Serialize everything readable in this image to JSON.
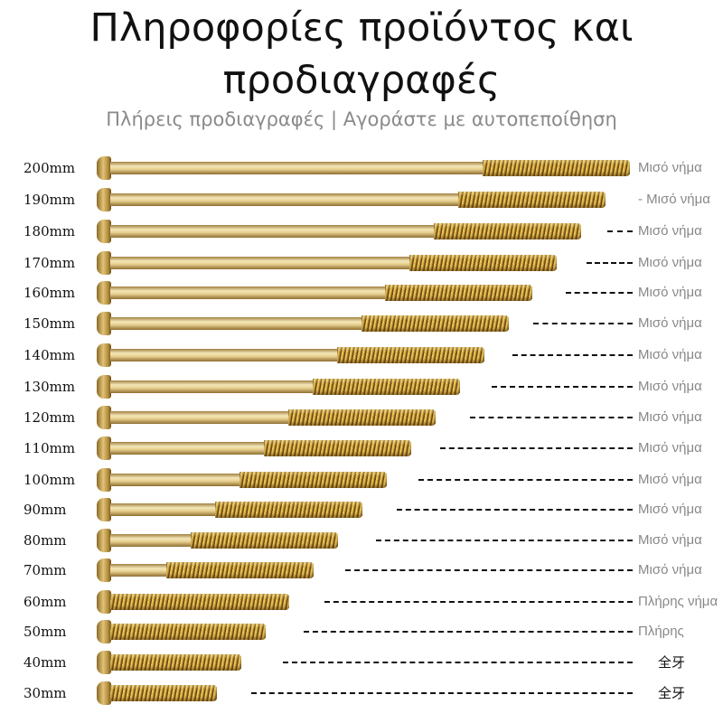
{
  "title_lines": [
    "Πληροφορίες προϊόντος και",
    "προδιαγραφές"
  ],
  "subtitle": "Πλήρεις προδιαγραφές | Αγοράστε με αυτοπεποίθηση",
  "rows": [
    {
      "size": "200mm",
      "mm": 200,
      "thread": "half",
      "label": [
        "Μισό",
        "νήμα"
      ]
    },
    {
      "size": "190mm",
      "mm": 190,
      "thread": "half",
      "label": [
        "- Μισό",
        "νήμα"
      ]
    },
    {
      "size": "180mm",
      "mm": 180,
      "thread": "half",
      "label": [
        "Μισό",
        "νήμα"
      ]
    },
    {
      "size": "170mm",
      "mm": 170,
      "thread": "half",
      "label": [
        "Μισό",
        "νήμα"
      ]
    },
    {
      "size": "160mm",
      "mm": 160,
      "thread": "half",
      "label": [
        "Μισό",
        "νήμα"
      ]
    },
    {
      "size": "150mm",
      "mm": 150,
      "thread": "half",
      "label": [
        "Μισό",
        "νήμα"
      ]
    },
    {
      "size": "140mm",
      "mm": 140,
      "thread": "half",
      "label": [
        "Μισό",
        "νήμα"
      ]
    },
    {
      "size": "130mm",
      "mm": 130,
      "thread": "half",
      "label": [
        "Μισό",
        "νήμα"
      ]
    },
    {
      "size": "120mm",
      "mm": 120,
      "thread": "half",
      "label": [
        "Μισό",
        "νήμα"
      ]
    },
    {
      "size": "110mm",
      "mm": 110,
      "thread": "half",
      "label": [
        "Μισό",
        "νήμα"
      ]
    },
    {
      "size": "100mm",
      "mm": 100,
      "thread": "half",
      "label": [
        "Μισό",
        "νήμα"
      ]
    },
    {
      "size": "90mm",
      "mm": 90,
      "thread": "half",
      "label": [
        "Μισό",
        "νήμα"
      ]
    },
    {
      "size": "80mm",
      "mm": 80,
      "thread": "half",
      "label": [
        "Μισό",
        "νήμα"
      ]
    },
    {
      "size": "70mm",
      "mm": 70,
      "thread": "half",
      "label": [
        "Μισό",
        "νήμα"
      ]
    },
    {
      "size": "60mm",
      "mm": 60,
      "thread": "full",
      "label": [
        "Πλήρης",
        "νήμα"
      ]
    },
    {
      "size": "50mm",
      "mm": 50,
      "thread": "full",
      "label": [
        "Πλήρης"
      ]
    },
    {
      "size": "40mm",
      "mm": 40,
      "thread": "full",
      "label": [
        "全牙"
      ]
    },
    {
      "size": "30mm",
      "mm": 30,
      "thread": "full",
      "label": [
        "全牙"
      ]
    }
  ],
  "colors": {
    "thread": "#e8c25a",
    "shaft": "#f4e6b8",
    "label": "#888888"
  }
}
